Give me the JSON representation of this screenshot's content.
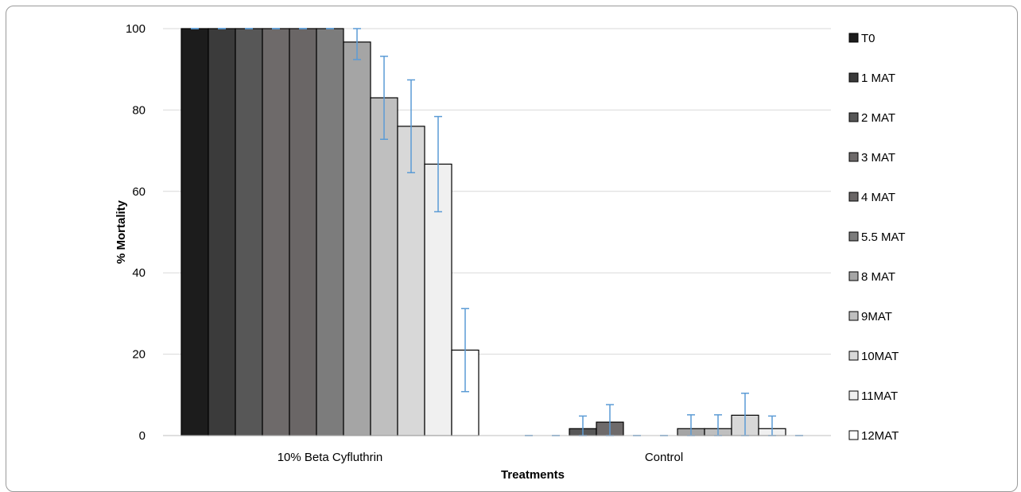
{
  "chart_data": {
    "type": "bar",
    "xlabel": "Treatments",
    "ylabel": "% Mortality",
    "ylim": [
      0,
      100
    ],
    "yticks": [
      0,
      20,
      40,
      60,
      80,
      100
    ],
    "grid": true,
    "legend_position": "right",
    "categories": [
      "10% Beta Cyfluthrin",
      "Control"
    ],
    "series": [
      {
        "name": "T0",
        "color": "#1c1c1c",
        "values": [
          100,
          0
        ],
        "errors": [
          0,
          0
        ]
      },
      {
        "name": "1 MAT",
        "color": "#3b3b3b",
        "values": [
          100,
          0
        ],
        "errors": [
          0,
          0
        ]
      },
      {
        "name": "2 MAT",
        "color": "#575757",
        "values": [
          100,
          1.7
        ],
        "errors": [
          0,
          3.1
        ]
      },
      {
        "name": "3 MAT",
        "color": "#6e6a6a",
        "values": [
          100,
          3.3
        ],
        "errors": [
          0,
          4.3
        ]
      },
      {
        "name": "4 MAT",
        "color": "#6a6666",
        "values": [
          100,
          0
        ],
        "errors": [
          0,
          0
        ]
      },
      {
        "name": "5.5 MAT",
        "color": "#7c7c7c",
        "values": [
          100,
          0
        ],
        "errors": [
          0,
          0
        ]
      },
      {
        "name": "8 MAT",
        "color": "#a5a5a5",
        "values": [
          96.7,
          1.7
        ],
        "errors": [
          4.3,
          3.4
        ]
      },
      {
        "name": "9MAT",
        "color": "#bfbfbf",
        "values": [
          83,
          1.7
        ],
        "errors": [
          10.2,
          3.4
        ]
      },
      {
        "name": "10MAT",
        "color": "#d8d8d8",
        "values": [
          76,
          5
        ],
        "errors": [
          11.4,
          5.4
        ]
      },
      {
        "name": "11MAT",
        "color": "#f0f0f0",
        "values": [
          66.7,
          1.7
        ],
        "errors": [
          11.7,
          3.1
        ]
      },
      {
        "name": "12MAT",
        "color": "#ffffff",
        "values": [
          21,
          0
        ],
        "errors": [
          10.2,
          0
        ]
      }
    ],
    "error_bar_color": "#5b9bd5"
  }
}
